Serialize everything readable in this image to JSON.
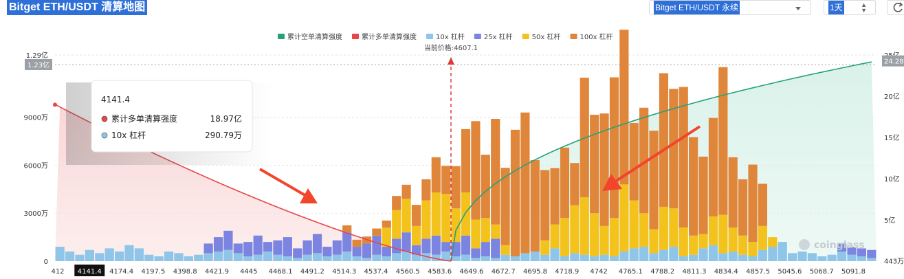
{
  "header": {
    "title": "Bitget ETH/USDT 清算地图",
    "pair_select": "Bitget ETH/USDT 永续",
    "period": "1天"
  },
  "chart_data": {
    "type": "bar",
    "legend": [
      {
        "name": "累计空单清算强度",
        "color": "#26a17b"
      },
      {
        "name": "累计多单清算强度",
        "color": "#e8454a"
      },
      {
        "name": "10x 杠杆",
        "color": "#8ec5e8"
      },
      {
        "name": "25x 杠杆",
        "color": "#7b84e0"
      },
      {
        "name": "50x 杠杆",
        "color": "#f4c21c"
      },
      {
        "name": "100x 杠杆",
        "color": "#e0863a"
      }
    ],
    "legend_position": "top-center",
    "current_price_label": "当前价格:4607.1",
    "current_price": 4607.1,
    "left_axis_ticks": [
      "0",
      "3000万",
      "6000万",
      "9000万",
      "1.29亿"
    ],
    "left_axis_values": [
      0,
      30000000,
      60000000,
      90000000,
      129000000
    ],
    "left_axis_marker": "1.23亿",
    "right_axis_ticks": [
      "443万",
      "5亿",
      "10亿",
      "15亿",
      "20亿",
      "25亿"
    ],
    "right_axis_values": [
      4430000,
      500000000,
      1000000000,
      1500000000,
      2000000000,
      2500000000
    ],
    "right_axis_marker": "24.28亿",
    "x_ticks": [
      "412",
      "4141.4",
      "4174.4",
      "4197.5",
      "4398.8",
      "4421.9",
      "4445",
      "4468.1",
      "4491.2",
      "4514.3",
      "4537.4",
      "4560.5",
      "4583.6",
      "4649.6",
      "4672.7",
      "4695.8",
      "4718.9",
      "4742",
      "4765.1",
      "4788.2",
      "4811.3",
      "4834.4",
      "4857.5",
      "5045.6",
      "5068.7",
      "5091.8"
    ],
    "x_highlight": "4141.4",
    "watermark": "coinglass",
    "tooltip": {
      "title": "4141.4",
      "rows": [
        {
          "label": "累计多单清算强度",
          "value": "18.97亿",
          "color": "#e8454a"
        },
        {
          "label": "10x 杠杆",
          "value": "290.79万",
          "color": "#8ec5e8"
        }
      ]
    },
    "bars_10x": [
      9,
      6,
      4,
      7,
      5,
      8,
      6,
      10,
      8,
      4,
      3,
      6,
      5,
      3,
      4,
      5,
      6,
      7,
      5,
      3,
      4,
      6,
      4,
      3,
      2,
      4,
      5,
      3,
      4,
      6,
      3,
      2,
      4,
      3,
      5,
      6,
      4,
      5,
      4,
      6,
      3,
      4,
      2,
      3,
      2,
      4,
      3,
      5,
      6,
      4,
      8,
      3,
      5,
      4,
      3,
      4,
      3,
      6,
      8,
      9,
      5,
      7,
      9,
      3,
      4,
      8,
      10,
      5,
      6,
      4,
      3,
      7,
      9,
      12,
      5,
      6,
      5,
      3,
      4,
      6,
      4,
      3,
      2
    ],
    "bars_25x": [
      0,
      0,
      0,
      0,
      0,
      0,
      0,
      0,
      0,
      0,
      0,
      0,
      0,
      0,
      0,
      0,
      0,
      0,
      0,
      0,
      0,
      0,
      0,
      0,
      0,
      0,
      0,
      0,
      0,
      0,
      0,
      0,
      0,
      0,
      0,
      0,
      0,
      0,
      0,
      0,
      0,
      0,
      0,
      0,
      0,
      0,
      0,
      0,
      0,
      0,
      0,
      0,
      0,
      0,
      0,
      0,
      0,
      0,
      0,
      0,
      0,
      0,
      0,
      0,
      0,
      0,
      0,
      0,
      0,
      0,
      0,
      0,
      0,
      0,
      0,
      0,
      0,
      0,
      0,
      0,
      0,
      0,
      0
    ],
    "bars_50x": [
      0,
      0,
      0,
      0,
      0,
      0,
      0,
      0,
      0,
      0,
      0,
      0,
      0,
      0,
      0,
      0,
      0,
      0,
      0,
      0,
      0,
      0,
      0,
      0,
      0,
      0,
      0,
      0,
      0,
      0,
      0,
      0,
      0,
      0,
      0,
      0,
      0,
      0,
      0,
      0,
      0,
      0,
      0,
      0,
      0,
      0,
      0,
      0,
      0,
      0,
      0,
      0,
      0,
      0,
      0,
      0,
      0,
      0,
      0,
      0,
      0,
      0,
      0,
      0,
      0,
      0,
      0,
      0,
      0,
      0,
      0,
      0,
      0,
      0,
      0,
      0,
      0,
      0,
      0,
      0,
      0,
      0,
      0
    ],
    "bars_100x": [
      0,
      0,
      0,
      0,
      0,
      0,
      0,
      0,
      0,
      0,
      0,
      0,
      0,
      0,
      0,
      0,
      0,
      0,
      0,
      0,
      0,
      0,
      0,
      0,
      0,
      0,
      0,
      0,
      0,
      0,
      0,
      0,
      0,
      0,
      0,
      0,
      0,
      0,
      0,
      0,
      0,
      0,
      0,
      0,
      0,
      0,
      0,
      0,
      0,
      0,
      0,
      0,
      0,
      0,
      0,
      0,
      0,
      0,
      0,
      0,
      0,
      0,
      0,
      0,
      0,
      0,
      0,
      0,
      0,
      0,
      0,
      0,
      0,
      0,
      0,
      0,
      0,
      0,
      0,
      0,
      0,
      0,
      0
    ]
  }
}
